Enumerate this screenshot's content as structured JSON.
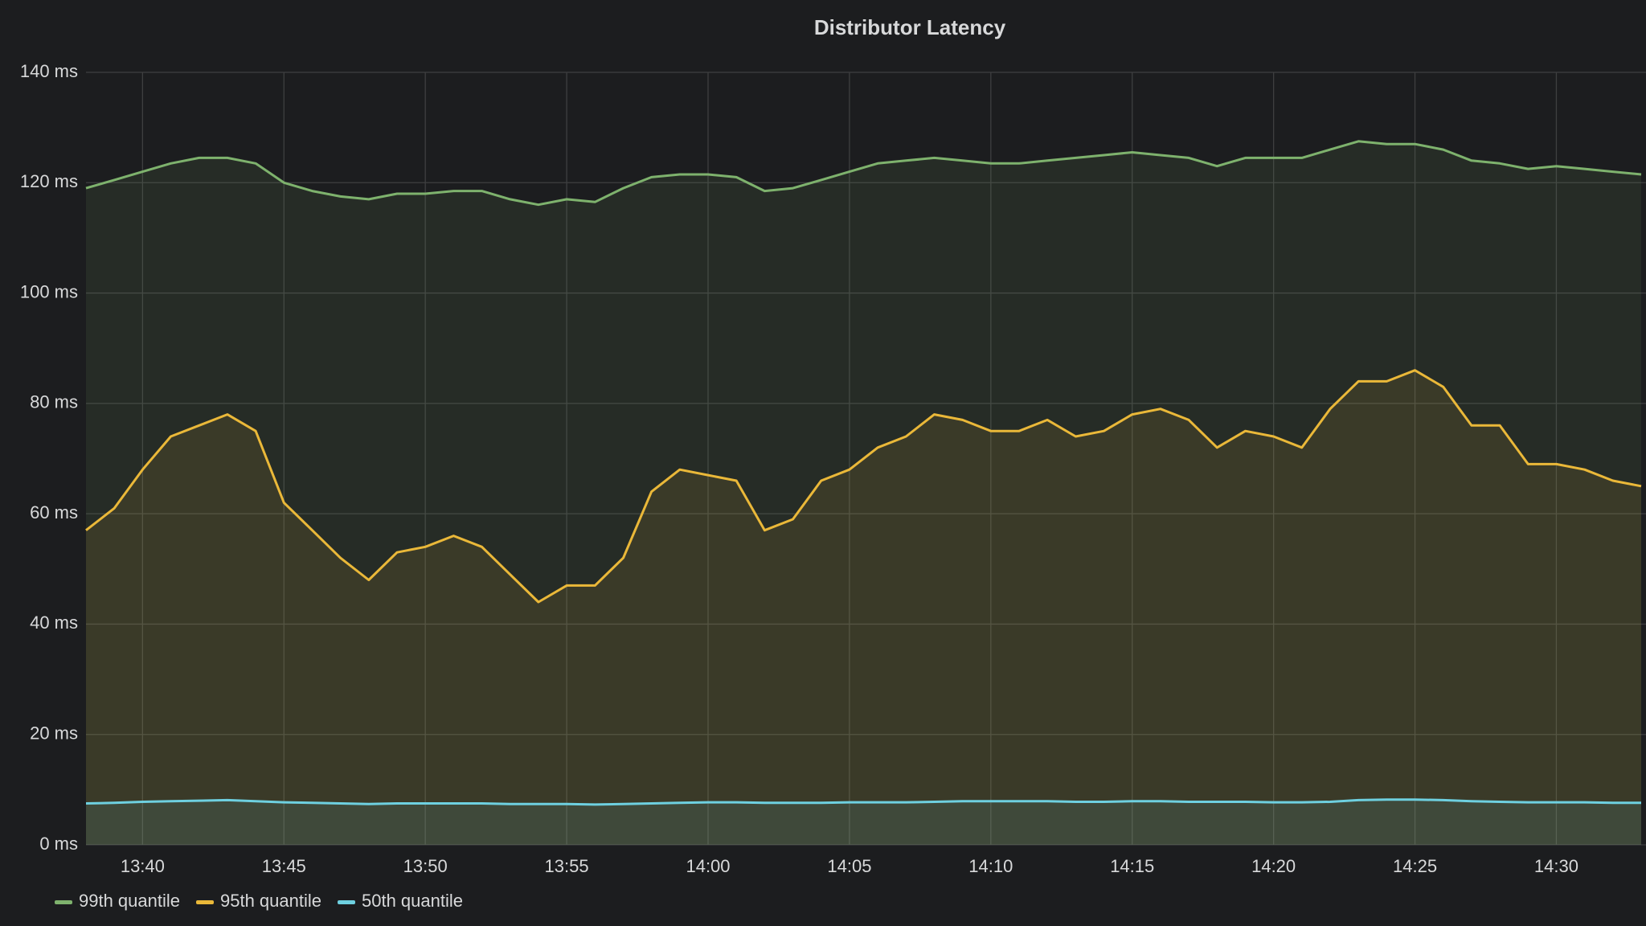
{
  "chart_data": {
    "type": "line",
    "title": "Distributor Latency",
    "x": [
      "13:38",
      "13:39",
      "13:40",
      "13:41",
      "13:42",
      "13:43",
      "13:44",
      "13:45",
      "13:46",
      "13:47",
      "13:48",
      "13:49",
      "13:50",
      "13:51",
      "13:52",
      "13:53",
      "13:54",
      "13:55",
      "13:56",
      "13:57",
      "13:58",
      "13:59",
      "14:00",
      "14:01",
      "14:02",
      "14:03",
      "14:04",
      "14:05",
      "14:06",
      "14:07",
      "14:08",
      "14:09",
      "14:10",
      "14:11",
      "14:12",
      "14:13",
      "14:14",
      "14:15",
      "14:16",
      "14:17",
      "14:18",
      "14:19",
      "14:20",
      "14:21",
      "14:22",
      "14:23",
      "14:24",
      "14:25",
      "14:26",
      "14:27",
      "14:28",
      "14:29",
      "14:30",
      "14:31",
      "14:32",
      "14:33"
    ],
    "series": [
      {
        "name": "99th quantile",
        "color": "#7eb26d",
        "values": [
          119,
          120.5,
          122,
          123.5,
          124.5,
          124.5,
          123.5,
          120,
          118.5,
          117.5,
          117,
          118,
          118,
          118.5,
          118.5,
          117,
          116,
          117,
          116.5,
          119,
          121,
          121.5,
          121.5,
          121,
          118.5,
          119,
          120.5,
          122,
          123.5,
          124,
          124.5,
          124,
          123.5,
          123.5,
          124,
          124.5,
          125,
          125.5,
          125,
          124.5,
          123,
          124.5,
          124.5,
          124.5,
          126,
          127.5,
          127,
          127,
          126,
          124,
          123.5,
          122.5,
          123,
          122.5,
          122,
          121.5
        ]
      },
      {
        "name": "95th quantile",
        "color": "#eab839",
        "values": [
          57,
          61,
          68,
          74,
          76,
          78,
          75,
          62,
          57,
          52,
          48,
          53,
          54,
          56,
          54,
          49,
          44,
          47,
          47,
          52,
          64,
          68,
          67,
          66,
          57,
          59,
          66,
          68,
          72,
          74,
          78,
          77,
          75,
          75,
          77,
          74,
          75,
          78,
          79,
          77,
          72,
          75,
          74,
          72,
          79,
          84,
          84,
          86,
          83,
          76,
          76,
          69,
          69,
          68,
          66,
          65
        ]
      },
      {
        "name": "50th quantile",
        "color": "#6ed0e0",
        "values": [
          7.5,
          7.6,
          7.8,
          7.9,
          8,
          8.1,
          7.9,
          7.7,
          7.6,
          7.5,
          7.4,
          7.5,
          7.5,
          7.5,
          7.5,
          7.4,
          7.4,
          7.4,
          7.3,
          7.4,
          7.5,
          7.6,
          7.7,
          7.7,
          7.6,
          7.6,
          7.6,
          7.7,
          7.7,
          7.7,
          7.8,
          7.9,
          7.9,
          7.9,
          7.9,
          7.8,
          7.8,
          7.9,
          7.9,
          7.8,
          7.8,
          7.8,
          7.7,
          7.7,
          7.8,
          8.1,
          8.2,
          8.2,
          8.1,
          7.9,
          7.8,
          7.7,
          7.7,
          7.7,
          7.6,
          7.6
        ]
      }
    ],
    "xlim": [
      "13:38",
      "14:33"
    ],
    "xticks": [
      "13:40",
      "13:45",
      "13:50",
      "13:55",
      "14:00",
      "14:05",
      "14:10",
      "14:15",
      "14:20",
      "14:25",
      "14:30"
    ],
    "ylim": [
      0,
      140
    ],
    "yticks": [
      {
        "value": 0,
        "label": "0 ms"
      },
      {
        "value": 20,
        "label": "20 ms"
      },
      {
        "value": 40,
        "label": "40 ms"
      },
      {
        "value": 60,
        "label": "60 ms"
      },
      {
        "value": 80,
        "label": "80 ms"
      },
      {
        "value": 100,
        "label": "100 ms"
      },
      {
        "value": 120,
        "label": "120 ms"
      },
      {
        "value": 140,
        "label": "140 ms"
      }
    ],
    "grid": true,
    "legend": "bottom"
  }
}
